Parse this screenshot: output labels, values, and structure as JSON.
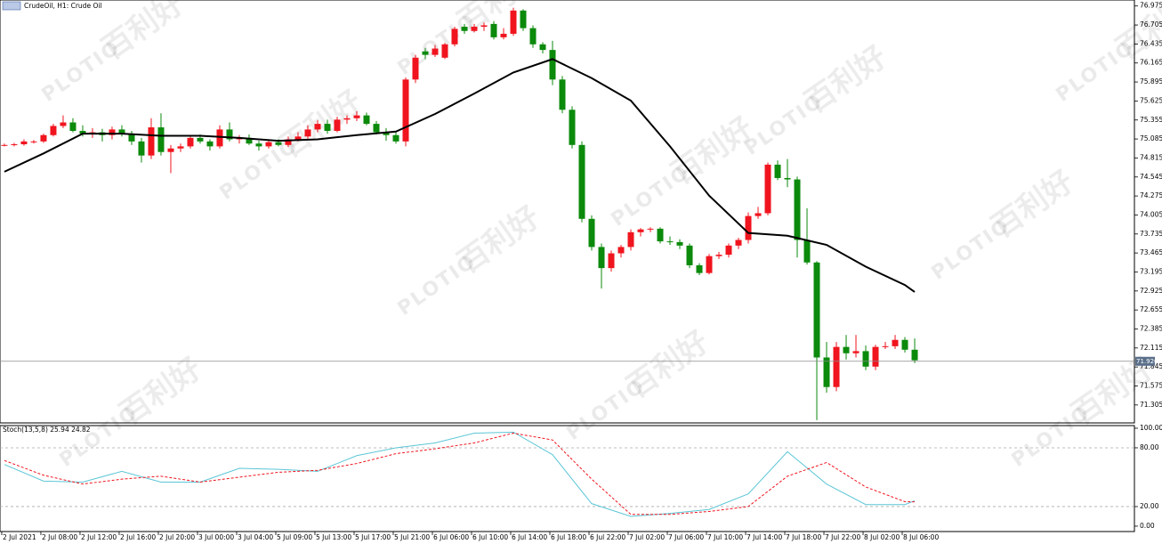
{
  "watermark": {
    "text": "百利好",
    "brand": "PLOTIO"
  },
  "chart_data": [
    {
      "type": "candlestick",
      "title": "CrudeOil, H1: Crude Oil",
      "up_color": "#f0141e",
      "down_color": "#0b8a0b",
      "xlim": [
        -0.45,
        115.45
      ],
      "ylim": [
        71.05,
        77.06
      ],
      "yticks": [
        76.975,
        76.705,
        76.435,
        76.165,
        75.895,
        75.625,
        75.355,
        75.085,
        74.815,
        74.545,
        74.275,
        74.005,
        73.735,
        73.465,
        73.195,
        72.925,
        72.655,
        72.385,
        72.115,
        71.845,
        71.575,
        71.305
      ],
      "bid_line": 71.926,
      "open": [
        75.0,
        75.0,
        75.01,
        75.05,
        75.05,
        75.14,
        75.27,
        75.32,
        75.2,
        75.16,
        75.18,
        75.14,
        75.22,
        75.15,
        75.05,
        74.85,
        75.25,
        74.9,
        74.95,
        74.98,
        75.1,
        75.05,
        74.98,
        75.22,
        75.08,
        75.1,
        75.02,
        74.98,
        75.04,
        75.0,
        75.08,
        75.12,
        75.22,
        75.3,
        75.2,
        75.36,
        75.38,
        75.42,
        75.3,
        75.18,
        75.14,
        75.05,
        75.93,
        76.33,
        76.28,
        76.24,
        76.43,
        76.68,
        76.62,
        76.68,
        76.72,
        76.53,
        76.58,
        76.91,
        76.66,
        76.43,
        76.35,
        75.93,
        75.5,
        75.0,
        73.95,
        73.55,
        73.25,
        73.46,
        73.55,
        73.76,
        73.8,
        73.81,
        73.63,
        73.62,
        73.57,
        73.29,
        73.18,
        73.42,
        73.44,
        73.57,
        73.65,
        73.99,
        74.03,
        74.72,
        74.53,
        74.51,
        73.65,
        73.33,
        71.98,
        71.56,
        72.13,
        72.04,
        72.07,
        71.85,
        72.13,
        72.14,
        72.23,
        72.09
      ],
      "high": [
        75.02,
        75.03,
        75.08,
        75.07,
        75.16,
        75.3,
        75.42,
        75.38,
        75.28,
        75.24,
        75.23,
        75.26,
        75.28,
        75.2,
        75.1,
        75.38,
        75.45,
        75.0,
        75.02,
        75.12,
        75.15,
        75.08,
        75.28,
        75.32,
        75.14,
        75.15,
        75.06,
        75.06,
        75.08,
        75.12,
        75.18,
        75.28,
        75.35,
        75.36,
        75.4,
        75.42,
        75.48,
        75.46,
        75.34,
        75.24,
        75.2,
        75.96,
        76.28,
        76.38,
        76.42,
        76.45,
        76.68,
        76.72,
        76.72,
        76.74,
        76.76,
        76.66,
        76.95,
        76.93,
        76.7,
        76.46,
        76.48,
        75.98,
        75.55,
        75.05,
        74.0,
        73.6,
        73.5,
        73.58,
        73.8,
        73.82,
        73.83,
        73.83,
        73.7,
        73.66,
        73.6,
        73.32,
        73.45,
        73.48,
        73.6,
        73.68,
        74.04,
        74.12,
        74.75,
        74.78,
        74.8,
        74.55,
        74.1,
        73.35,
        72.2,
        72.2,
        72.3,
        72.3,
        72.15,
        72.16,
        72.2,
        72.3,
        72.27,
        72.25
      ],
      "low": [
        74.98,
        74.98,
        74.99,
        75.02,
        75.03,
        75.12,
        75.24,
        75.18,
        75.12,
        75.1,
        75.05,
        75.08,
        75.12,
        75.0,
        74.75,
        74.8,
        74.85,
        74.6,
        74.9,
        74.95,
        75.02,
        74.92,
        74.95,
        75.05,
        75.02,
        75.0,
        74.92,
        74.95,
        74.98,
        74.97,
        75.05,
        75.08,
        75.18,
        75.16,
        75.18,
        75.3,
        75.34,
        75.28,
        75.15,
        75.06,
        75.02,
        74.98,
        75.88,
        76.22,
        76.25,
        76.22,
        76.4,
        76.58,
        76.6,
        76.62,
        76.5,
        76.5,
        76.55,
        76.62,
        76.38,
        76.3,
        75.85,
        75.45,
        74.95,
        73.9,
        73.5,
        72.96,
        73.2,
        73.4,
        73.5,
        73.7,
        73.76,
        73.6,
        73.58,
        73.52,
        73.25,
        73.15,
        73.16,
        73.38,
        73.4,
        73.52,
        73.6,
        73.95,
        74.0,
        74.5,
        74.4,
        73.4,
        73.3,
        71.09,
        71.48,
        71.5,
        71.95,
        71.98,
        71.8,
        71.8,
        72.1,
        72.1,
        72.05,
        71.9
      ],
      "close": [
        75.0,
        75.01,
        75.05,
        75.05,
        75.14,
        75.27,
        75.32,
        75.2,
        75.16,
        75.18,
        75.14,
        75.22,
        75.15,
        75.05,
        74.85,
        75.25,
        74.9,
        74.95,
        74.98,
        75.1,
        75.05,
        74.98,
        75.22,
        75.08,
        75.1,
        75.02,
        74.98,
        75.04,
        75.0,
        75.08,
        75.12,
        75.22,
        75.3,
        75.2,
        75.36,
        75.38,
        75.42,
        75.3,
        75.18,
        75.14,
        75.05,
        75.93,
        76.24,
        76.28,
        76.37,
        76.43,
        76.65,
        76.62,
        76.68,
        76.7,
        76.53,
        76.58,
        76.91,
        76.66,
        76.43,
        76.35,
        75.93,
        75.5,
        75.0,
        73.95,
        73.55,
        73.25,
        73.46,
        73.55,
        73.76,
        73.8,
        73.81,
        73.63,
        73.62,
        73.57,
        73.29,
        73.18,
        73.42,
        73.44,
        73.57,
        73.65,
        73.99,
        74.03,
        74.72,
        74.53,
        74.51,
        73.65,
        73.33,
        71.98,
        71.56,
        72.13,
        72.04,
        72.07,
        71.85,
        72.13,
        72.14,
        72.23,
        72.09,
        71.94
      ],
      "ma": {
        "color": "#000000",
        "x": [
          0,
          4,
          8,
          12,
          16,
          20,
          24,
          28,
          32,
          36,
          40,
          44,
          48,
          52,
          56,
          60,
          64,
          68,
          72,
          76,
          80,
          84,
          88,
          92,
          93
        ],
        "values": [
          74.62,
          74.88,
          75.16,
          75.16,
          75.13,
          75.13,
          75.1,
          75.06,
          75.08,
          75.14,
          75.19,
          75.44,
          75.73,
          76.03,
          76.22,
          75.95,
          75.63,
          74.98,
          74.28,
          73.75,
          73.71,
          73.58,
          73.27,
          73.01,
          72.91
        ]
      }
    },
    {
      "type": "line",
      "title": "Stoch(13,5,8) 25.94 24.82",
      "xlim": [
        -0.45,
        115.45
      ],
      "ylim": [
        -5.5,
        102.7
      ],
      "yticks": [
        {
          "value": 100,
          "label": "100.00"
        },
        {
          "value": 80,
          "label": "80.00"
        },
        {
          "value": 20,
          "label": "20.00"
        },
        {
          "value": 0,
          "label": "0.00"
        }
      ],
      "levels": [
        80,
        20
      ],
      "x": [
        0,
        4,
        8,
        12,
        16,
        20,
        24,
        28,
        32,
        36,
        40,
        44,
        48,
        52,
        56,
        60,
        64,
        68,
        72,
        76,
        80,
        84,
        88,
        92,
        93
      ],
      "series": [
        {
          "color": "#5bc6d6",
          "dash": false,
          "values": [
            63,
            46,
            45,
            56,
            45,
            45,
            59,
            58,
            56,
            72,
            80,
            85,
            95,
            96,
            73,
            23,
            10,
            13,
            17,
            33,
            76,
            43,
            22,
            22,
            25.94
          ]
        },
        {
          "color": "#f0141e",
          "dash": true,
          "values": [
            67,
            52,
            43,
            48,
            51,
            45,
            50,
            55,
            57,
            64,
            74,
            79,
            85,
            95,
            88,
            48,
            12,
            12,
            15,
            20,
            51,
            65,
            40,
            25,
            24.82
          ]
        }
      ],
      "xlabels": [
        "2 Jul 2021",
        "2 Jul 08:00",
        "2 Jul 12:00",
        "2 Jul 16:00",
        "2 Jul 20:00",
        "3 Jul 00:00",
        "3 Jul 04:00",
        "5 Jul 09:00",
        "5 Jul 13:00",
        "5 Jul 17:00",
        "5 Jul 21:00",
        "6 Jul 06:00",
        "6 Jul 10:00",
        "6 Jul 14:00",
        "6 Jul 18:00",
        "6 Jul 22:00",
        "7 Jul 02:00",
        "7 Jul 06:00",
        "7 Jul 10:00",
        "7 Jul 14:00",
        "7 Jul 18:00",
        "7 Jul 22:00",
        "8 Jul 02:00",
        "8 Jul 06:00"
      ]
    }
  ]
}
